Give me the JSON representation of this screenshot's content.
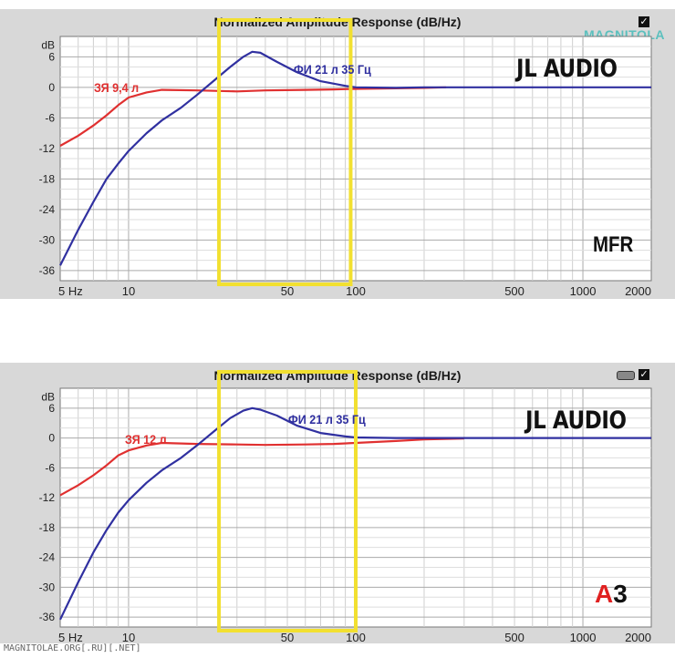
{
  "footer": "MAGNITOLAE.ORG[.RU][.NET]",
  "chart_data": [
    {
      "type": "line",
      "title": "Normalized Amplitude Response (dB/Hz)",
      "ylabel": "dB",
      "xscale": "log",
      "xlim": [
        5,
        2000
      ],
      "ylim": [
        -38,
        10
      ],
      "x_ticks": [
        {
          "value": 5,
          "label": "5 Hz"
        },
        {
          "value": 10,
          "label": "10"
        },
        {
          "value": 50,
          "label": "50"
        },
        {
          "value": 100,
          "label": "100"
        },
        {
          "value": 500,
          "label": "500"
        },
        {
          "value": 1000,
          "label": "1000"
        },
        {
          "value": 2000,
          "label": "2000"
        }
      ],
      "y_ticks": [
        6,
        0,
        -6,
        -12,
        -18,
        -24,
        -30,
        -36
      ],
      "grid": true,
      "highlight_range_hz": [
        25,
        95
      ],
      "brand": "JL AUDIO",
      "tag": "MFR",
      "logo": "MAGNITOLA",
      "series": [
        {
          "name": "ЗЯ 9,4 л",
          "color": "#e03030",
          "points": [
            [
              5,
              -11.5
            ],
            [
              6,
              -9.5
            ],
            [
              7,
              -7.5
            ],
            [
              8,
              -5.5
            ],
            [
              9,
              -3.5
            ],
            [
              10,
              -2
            ],
            [
              12,
              -1
            ],
            [
              14,
              -0.5
            ],
            [
              20,
              -0.6
            ],
            [
              30,
              -0.8
            ],
            [
              40,
              -0.6
            ],
            [
              60,
              -0.5
            ],
            [
              80,
              -0.4
            ],
            [
              100,
              -0.3
            ],
            [
              150,
              -0.2
            ],
            [
              200,
              -0.1
            ],
            [
              250,
              0
            ]
          ]
        },
        {
          "name": "ФИ 21 л 35 Гц",
          "color": "#3030a0",
          "points": [
            [
              5,
              -35
            ],
            [
              6,
              -28
            ],
            [
              7,
              -22.5
            ],
            [
              8,
              -18
            ],
            [
              9,
              -15
            ],
            [
              10,
              -12.5
            ],
            [
              12,
              -9
            ],
            [
              14,
              -6.5
            ],
            [
              17,
              -4
            ],
            [
              20,
              -1.5
            ],
            [
              24,
              1.5
            ],
            [
              28,
              4
            ],
            [
              32,
              6
            ],
            [
              35,
              7
            ],
            [
              38,
              6.8
            ],
            [
              45,
              5
            ],
            [
              55,
              3
            ],
            [
              70,
              1.2
            ],
            [
              90,
              0.3
            ],
            [
              100,
              0
            ],
            [
              150,
              -0.1
            ],
            [
              200,
              0
            ],
            [
              500,
              0
            ],
            [
              1000,
              0
            ],
            [
              2000,
              0
            ]
          ]
        }
      ]
    },
    {
      "type": "line",
      "title": "Normalized Amplitude Response (dB/Hz)",
      "ylabel": "dB",
      "xscale": "log",
      "xlim": [
        5,
        2000
      ],
      "ylim": [
        -38,
        10
      ],
      "x_ticks": [
        {
          "value": 5,
          "label": "5 Hz"
        },
        {
          "value": 10,
          "label": "10"
        },
        {
          "value": 50,
          "label": "50"
        },
        {
          "value": 100,
          "label": "100"
        },
        {
          "value": 500,
          "label": "500"
        },
        {
          "value": 1000,
          "label": "1000"
        },
        {
          "value": 2000,
          "label": "2000"
        }
      ],
      "y_ticks": [
        6,
        0,
        -6,
        -12,
        -18,
        -24,
        -30,
        -36
      ],
      "grid": true,
      "highlight_range_hz": [
        25,
        100
      ],
      "brand": "JL AUDIO",
      "tag_a": "A",
      "tag_3": "3",
      "series": [
        {
          "name": "ЗЯ 12 л",
          "color": "#e03030",
          "points": [
            [
              5,
              -11.5
            ],
            [
              6,
              -9.5
            ],
            [
              7,
              -7.5
            ],
            [
              8,
              -5.5
            ],
            [
              9,
              -3.5
            ],
            [
              10,
              -2.5
            ],
            [
              12,
              -1.5
            ],
            [
              14,
              -1
            ],
            [
              20,
              -1.2
            ],
            [
              30,
              -1.3
            ],
            [
              40,
              -1.4
            ],
            [
              60,
              -1.3
            ],
            [
              80,
              -1.2
            ],
            [
              100,
              -1
            ],
            [
              150,
              -0.6
            ],
            [
              200,
              -0.3
            ],
            [
              300,
              -0.1
            ]
          ]
        },
        {
          "name": "ФИ 21 л 35 Гц",
          "color": "#3030a0",
          "points": [
            [
              5,
              -36.5
            ],
            [
              6,
              -29
            ],
            [
              7,
              -23
            ],
            [
              8,
              -18.5
            ],
            [
              9,
              -15
            ],
            [
              10,
              -12.5
            ],
            [
              12,
              -9
            ],
            [
              14,
              -6.5
            ],
            [
              17,
              -4
            ],
            [
              20,
              -1.5
            ],
            [
              24,
              1.5
            ],
            [
              28,
              4
            ],
            [
              32,
              5.5
            ],
            [
              35,
              6
            ],
            [
              38,
              5.7
            ],
            [
              45,
              4.5
            ],
            [
              55,
              2.5
            ],
            [
              70,
              1
            ],
            [
              90,
              0.3
            ],
            [
              100,
              0.1
            ],
            [
              150,
              0
            ],
            [
              2000,
              0
            ]
          ]
        }
      ]
    }
  ]
}
